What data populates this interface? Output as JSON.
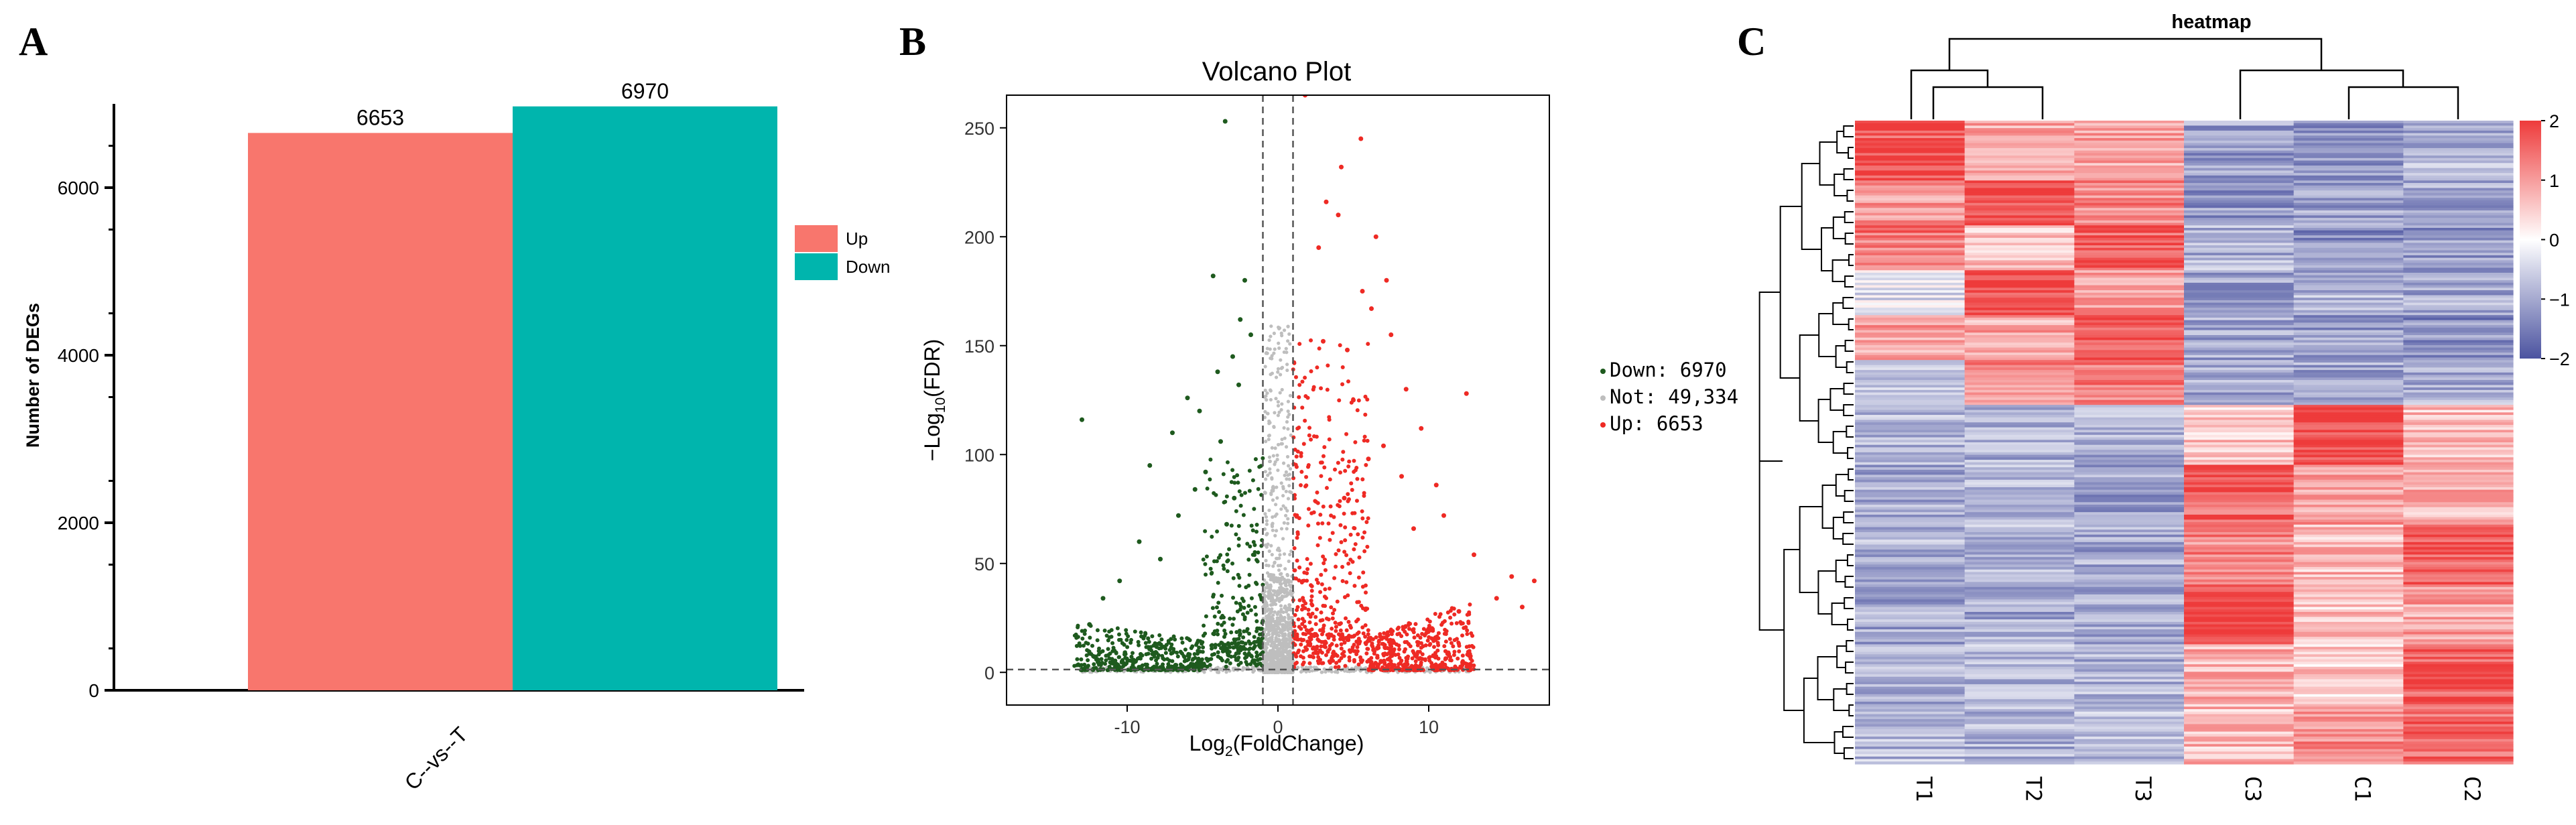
{
  "panels": {
    "a": "A",
    "b": "B",
    "c": "C"
  },
  "chart_data": [
    {
      "type": "bar",
      "ylabel": "Number of DEGs",
      "categories": [
        "C--vs--T"
      ],
      "series": [
        {
          "name": "Up",
          "values": [
            6653
          ],
          "color": "#F8766D"
        },
        {
          "name": "Down",
          "values": [
            6970
          ],
          "color": "#00B5AD"
        }
      ],
      "value_labels": [
        "6653",
        "6970"
      ],
      "ylim": [
        0,
        7000
      ],
      "yticks": [
        0,
        2000,
        4000,
        6000
      ],
      "ytick_labels": [
        "0",
        "2000",
        "4000",
        "6000"
      ],
      "legend": [
        "Up",
        "Down"
      ]
    },
    {
      "type": "scatter",
      "title": "Volcano Plot",
      "xlabel": "Log",
      "xlabel_sub": "2",
      "xlabel_tail": "(FoldChange)",
      "ylabel": "−Log",
      "ylabel_sub": "10",
      "ylabel_tail": "(FDR)",
      "xlim": [
        -18,
        18
      ],
      "ylim": [
        -15,
        265
      ],
      "xticks": [
        -10,
        0,
        10
      ],
      "xtick_labels": [
        "-10",
        "0",
        "10"
      ],
      "yticks": [
        0,
        50,
        100,
        150,
        200,
        250
      ],
      "ytick_labels": [
        "0",
        "50",
        "100",
        "150",
        "200",
        "250"
      ],
      "fc_threshold": [
        -1,
        1
      ],
      "fdr_threshold": 1.3,
      "groups": [
        {
          "name": "Down",
          "count": 6970,
          "color": "#1E5A1E",
          "legend": "Down: 6970"
        },
        {
          "name": "Not",
          "count": 49334,
          "color": "#BEBEBE",
          "legend": "Not: 49,334"
        },
        {
          "name": "Up",
          "count": 6653,
          "color": "#EE2A24",
          "legend": "Up: 6653"
        }
      ],
      "highlight_points": {
        "down": [
          [
            -3.5,
            253
          ],
          [
            -4.3,
            182
          ],
          [
            -13,
            116
          ],
          [
            -2.2,
            180
          ],
          [
            -2.5,
            162
          ],
          [
            -1.8,
            155
          ],
          [
            -3.0,
            145
          ],
          [
            -4.0,
            138
          ],
          [
            -2.6,
            132
          ],
          [
            -6.0,
            126
          ],
          [
            -5.2,
            120
          ],
          [
            -7.0,
            110
          ],
          [
            -3.8,
            106
          ],
          [
            -8.5,
            95
          ],
          [
            -4.8,
            92
          ],
          [
            -5.5,
            84
          ],
          [
            -2.9,
            80
          ],
          [
            -6.6,
            72
          ],
          [
            -3.4,
            68
          ],
          [
            -9.2,
            60
          ],
          [
            -7.8,
            52
          ],
          [
            -10.5,
            42
          ],
          [
            -11.6,
            34
          ],
          [
            -12.5,
            22
          ]
        ],
        "up": [
          [
            1.8,
            265
          ],
          [
            5.5,
            245
          ],
          [
            4.2,
            232
          ],
          [
            3.2,
            216
          ],
          [
            4.0,
            210
          ],
          [
            6.5,
            200
          ],
          [
            2.7,
            195
          ],
          [
            7.2,
            180
          ],
          [
            5.6,
            175
          ],
          [
            6.2,
            167
          ],
          [
            7.5,
            155
          ],
          [
            3.0,
            152
          ],
          [
            4.6,
            148
          ],
          [
            12.5,
            128
          ],
          [
            8.5,
            130
          ],
          [
            5.0,
            125
          ],
          [
            9.5,
            112
          ],
          [
            7.0,
            104
          ],
          [
            6.0,
            98
          ],
          [
            10.5,
            86
          ],
          [
            8.2,
            90
          ],
          [
            11.0,
            72
          ],
          [
            4.4,
            80
          ],
          [
            9.0,
            66
          ],
          [
            13.0,
            54
          ],
          [
            15.5,
            44
          ],
          [
            17.0,
            42
          ],
          [
            14.5,
            34
          ],
          [
            12.0,
            28
          ],
          [
            16.2,
            30
          ],
          [
            10.0,
            20
          ]
        ]
      }
    },
    {
      "type": "heatmap",
      "title": "heatmap",
      "columns": [
        "T1",
        "T2",
        "T3",
        "C3",
        "C1",
        "C2"
      ],
      "color_scale": {
        "min": -2,
        "max": 2,
        "low": "#4B53A0",
        "mid": "#FFFFFF",
        "high": "#EE3B3B"
      },
      "colorbar_ticks": [
        2,
        1,
        0,
        -1,
        -2
      ],
      "colorbar_labels": [
        "2",
        "1",
        "0",
        "−1",
        "−2"
      ],
      "row_blocks": [
        {
          "rows": 8,
          "values": [
            1.7,
            0.9,
            1.0,
            -1.1,
            -1.2,
            -0.9
          ]
        },
        {
          "rows": 6,
          "values": [
            1.1,
            1.8,
            1.2,
            -1.2,
            -1.1,
            -1.0
          ]
        },
        {
          "rows": 6,
          "values": [
            1.4,
            0.7,
            1.6,
            -0.9,
            -1.3,
            -1.2
          ]
        },
        {
          "rows": 6,
          "values": [
            -0.3,
            1.9,
            1.0,
            -1.1,
            -0.9,
            -1.0
          ]
        },
        {
          "rows": 6,
          "values": [
            1.0,
            0.9,
            1.8,
            -1.0,
            -1.1,
            -1.3
          ]
        },
        {
          "rows": 6,
          "values": [
            -0.6,
            1.2,
            1.4,
            -1.0,
            -1.0,
            -0.9
          ]
        },
        {
          "rows": 8,
          "values": [
            -0.8,
            -0.9,
            -0.9,
            0.6,
            1.9,
            0.7
          ]
        },
        {
          "rows": 8,
          "values": [
            -1.0,
            -0.9,
            -1.1,
            1.6,
            1.0,
            0.8
          ]
        },
        {
          "rows": 8,
          "values": [
            -0.9,
            -0.8,
            -1.0,
            1.2,
            0.7,
            1.6
          ]
        },
        {
          "rows": 8,
          "values": [
            -1.0,
            -1.0,
            -0.9,
            1.9,
            0.6,
            0.9
          ]
        },
        {
          "rows": 8,
          "values": [
            -0.9,
            -0.8,
            -0.9,
            0.8,
            0.5,
            1.7
          ]
        },
        {
          "rows": 8,
          "values": [
            -0.8,
            -0.9,
            -0.8,
            0.7,
            1.2,
            1.5
          ]
        }
      ]
    }
  ]
}
